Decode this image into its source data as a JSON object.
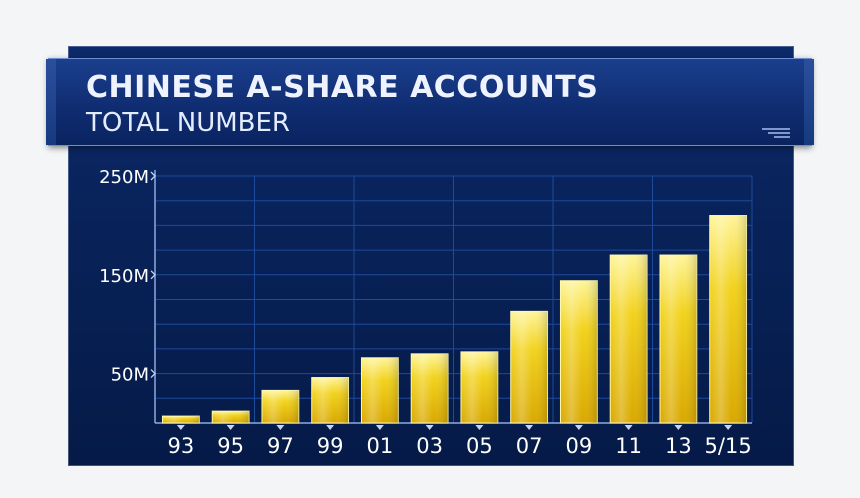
{
  "title": "CHINESE A-SHARE ACCOUNTS",
  "subtitle": "TOTAL NUMBER",
  "colors": {
    "bar_top": "#fff59a",
    "bar_mid": "#f2d21c",
    "bar_bottom": "#d9a800",
    "grid": "#1d4a9a",
    "text": "#ffffff"
  },
  "chart_data": {
    "type": "bar",
    "title": "CHINESE A-SHARE ACCOUNTS",
    "subtitle": "TOTAL NUMBER",
    "categories": [
      "93",
      "95",
      "97",
      "99",
      "01",
      "03",
      "05",
      "07",
      "09",
      "11",
      "13",
      "5/15"
    ],
    "values": [
      7,
      12,
      33,
      46,
      66,
      70,
      72,
      113,
      144,
      170,
      170,
      210
    ],
    "unit": "M",
    "y_ticks": [
      50,
      150,
      250
    ],
    "y_tick_labels": [
      "50M",
      "150M",
      "250M"
    ],
    "ylim": [
      0,
      250
    ],
    "grid": true
  }
}
